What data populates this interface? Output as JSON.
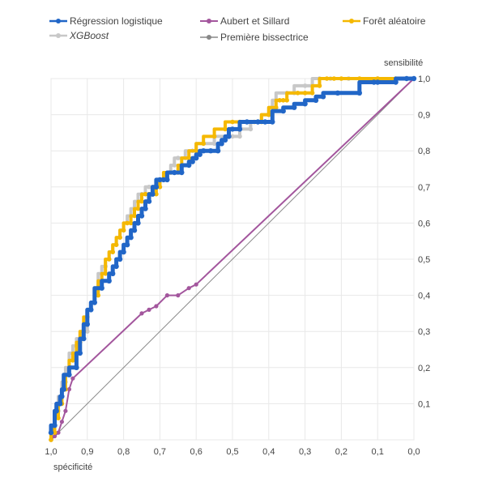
{
  "chart_data": {
    "type": "line",
    "xlabel": "spécificité",
    "ylabel": "sensibilité",
    "xlim": [
      1.0,
      0.0
    ],
    "ylim": [
      0.0,
      1.0
    ],
    "x_reversed": true,
    "y_axis_side": "right",
    "grid": true,
    "legend_position": "top",
    "x_ticks": [
      "1,0",
      "0,9",
      "0,8",
      "0,7",
      "0,6",
      "0,5",
      "0,4",
      "0,3",
      "0,2",
      "0,1",
      "0,0"
    ],
    "y_ticks": [
      "0,1",
      "0,2",
      "0,3",
      "0,4",
      "0,5",
      "0,6",
      "0,7",
      "0,8",
      "0,9",
      "1,0"
    ],
    "series": [
      {
        "name": "Régression logistique",
        "color": "#2166c7",
        "italic": false,
        "line": "step",
        "x": [
          1.0,
          0.99,
          0.985,
          0.975,
          0.97,
          0.965,
          0.95,
          0.93,
          0.92,
          0.91,
          0.9,
          0.89,
          0.88,
          0.86,
          0.84,
          0.83,
          0.82,
          0.81,
          0.8,
          0.79,
          0.78,
          0.77,
          0.76,
          0.75,
          0.74,
          0.73,
          0.72,
          0.71,
          0.7,
          0.69,
          0.68,
          0.66,
          0.64,
          0.62,
          0.61,
          0.6,
          0.59,
          0.58,
          0.56,
          0.54,
          0.53,
          0.52,
          0.51,
          0.5,
          0.48,
          0.46,
          0.43,
          0.41,
          0.39,
          0.36,
          0.33,
          0.3,
          0.27,
          0.25,
          0.21,
          0.15,
          0.11,
          0.1,
          0.05,
          0.02,
          0.0
        ],
        "y": [
          0.02,
          0.04,
          0.08,
          0.1,
          0.12,
          0.14,
          0.18,
          0.2,
          0.24,
          0.28,
          0.32,
          0.36,
          0.38,
          0.42,
          0.44,
          0.46,
          0.48,
          0.5,
          0.52,
          0.54,
          0.56,
          0.58,
          0.6,
          0.62,
          0.64,
          0.66,
          0.68,
          0.7,
          0.72,
          0.72,
          0.72,
          0.74,
          0.74,
          0.76,
          0.77,
          0.78,
          0.79,
          0.8,
          0.8,
          0.8,
          0.82,
          0.83,
          0.84,
          0.86,
          0.86,
          0.88,
          0.88,
          0.88,
          0.88,
          0.91,
          0.92,
          0.93,
          0.94,
          0.95,
          0.96,
          0.96,
          0.99,
          0.99,
          0.99,
          1.0,
          1.0
        ]
      },
      {
        "name": "XGBoost",
        "color": "#c8c8c8",
        "italic": true,
        "line": "step",
        "x": [
          1.0,
          0.99,
          0.98,
          0.97,
          0.96,
          0.95,
          0.94,
          0.93,
          0.91,
          0.9,
          0.89,
          0.88,
          0.87,
          0.86,
          0.85,
          0.84,
          0.83,
          0.82,
          0.81,
          0.8,
          0.79,
          0.78,
          0.77,
          0.76,
          0.75,
          0.74,
          0.73,
          0.72,
          0.7,
          0.68,
          0.67,
          0.66,
          0.65,
          0.63,
          0.61,
          0.6,
          0.58,
          0.55,
          0.5,
          0.48,
          0.45,
          0.42,
          0.4,
          0.39,
          0.38,
          0.35,
          0.33,
          0.3,
          0.28,
          0.26,
          0.23,
          0.18,
          0.1,
          0.05,
          0.0
        ],
        "y": [
          0.0,
          0.04,
          0.08,
          0.12,
          0.16,
          0.2,
          0.24,
          0.26,
          0.28,
          0.3,
          0.36,
          0.38,
          0.42,
          0.46,
          0.48,
          0.5,
          0.52,
          0.54,
          0.56,
          0.58,
          0.6,
          0.62,
          0.64,
          0.66,
          0.68,
          0.68,
          0.7,
          0.7,
          0.7,
          0.72,
          0.74,
          0.76,
          0.78,
          0.78,
          0.8,
          0.8,
          0.82,
          0.82,
          0.84,
          0.84,
          0.86,
          0.88,
          0.9,
          0.92,
          0.94,
          0.96,
          0.96,
          0.98,
          0.98,
          1.0,
          1.0,
          1.0,
          1.0,
          1.0,
          1.0
        ]
      },
      {
        "name": "Forêt aléatoire",
        "color": "#f5b800",
        "italic": false,
        "line": "step",
        "x": [
          1.0,
          0.99,
          0.98,
          0.97,
          0.96,
          0.95,
          0.94,
          0.93,
          0.92,
          0.91,
          0.9,
          0.89,
          0.88,
          0.87,
          0.86,
          0.85,
          0.84,
          0.83,
          0.82,
          0.81,
          0.8,
          0.79,
          0.78,
          0.77,
          0.76,
          0.75,
          0.74,
          0.73,
          0.72,
          0.71,
          0.7,
          0.69,
          0.67,
          0.65,
          0.64,
          0.62,
          0.6,
          0.58,
          0.55,
          0.52,
          0.5,
          0.48,
          0.44,
          0.42,
          0.4,
          0.38,
          0.37,
          0.36,
          0.35,
          0.32,
          0.3,
          0.28,
          0.26,
          0.24,
          0.22,
          0.2,
          0.15,
          0.1,
          0.05,
          0.0
        ],
        "y": [
          0.0,
          0.02,
          0.06,
          0.1,
          0.14,
          0.18,
          0.22,
          0.24,
          0.27,
          0.3,
          0.34,
          0.36,
          0.38,
          0.4,
          0.44,
          0.46,
          0.5,
          0.52,
          0.54,
          0.56,
          0.58,
          0.6,
          0.6,
          0.62,
          0.64,
          0.66,
          0.68,
          0.68,
          0.68,
          0.68,
          0.7,
          0.72,
          0.74,
          0.74,
          0.76,
          0.78,
          0.8,
          0.82,
          0.84,
          0.86,
          0.88,
          0.88,
          0.88,
          0.88,
          0.9,
          0.92,
          0.94,
          0.94,
          0.94,
          0.96,
          0.96,
          0.96,
          0.98,
          1.0,
          1.0,
          1.0,
          1.0,
          1.0,
          1.0,
          1.0
        ]
      },
      {
        "name": "Aubert et Sillard",
        "color": "#a3569d",
        "italic": false,
        "line": "linear",
        "x": [
          1.0,
          0.99,
          0.98,
          0.97,
          0.96,
          0.95,
          0.94,
          0.75,
          0.73,
          0.71,
          0.68,
          0.65,
          0.62,
          0.6,
          0.0
        ],
        "y": [
          0.0,
          0.01,
          0.02,
          0.05,
          0.08,
          0.14,
          0.17,
          0.35,
          0.36,
          0.37,
          0.4,
          0.4,
          0.42,
          0.43,
          1.0
        ]
      },
      {
        "name": "Première bissectrice",
        "color": "#888888",
        "italic": false,
        "line": "linear",
        "x": [
          1.0,
          0.0
        ],
        "y": [
          0.0,
          1.0
        ]
      }
    ]
  }
}
